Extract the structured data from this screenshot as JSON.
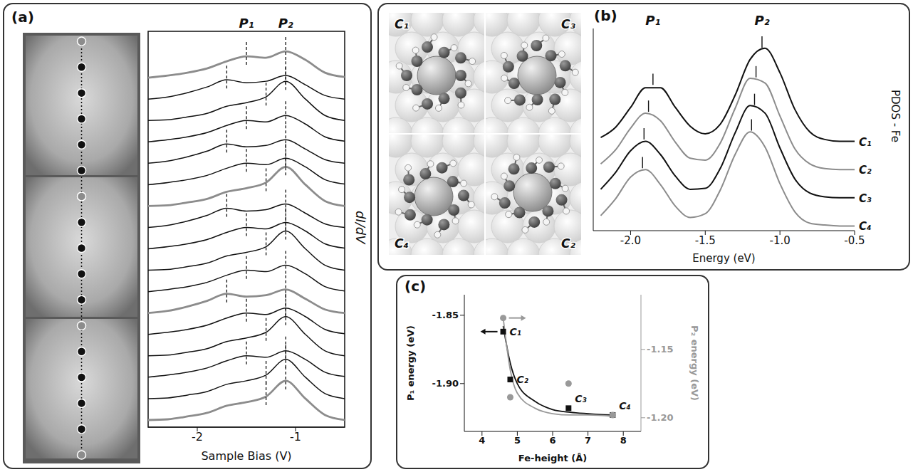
{
  "chart_data": [
    {
      "type": "line",
      "title": "(a)",
      "x_label": "Sample Bias (V)",
      "y_label": "dI/dV",
      "annotations": [
        "P₁",
        "P₂"
      ],
      "x": [
        -2.5,
        -2.3,
        -2.1,
        -1.9,
        -1.7,
        -1.5,
        -1.3,
        -1.1,
        -0.9,
        -0.7,
        -0.5
      ],
      "xlim": [
        -2.5,
        -0.5
      ],
      "xticks": [
        -2,
        -1
      ],
      "ylim": [
        -0.05,
        5.5
      ],
      "tick_labels": "x",
      "series": [
        {
          "color": "#8c8c8c",
          "line_style": "thick",
          "peaks": [
            -1.5,
            -1.1
          ],
          "values": [
            4.85,
            4.88,
            4.92,
            4.98,
            5.08,
            5.15,
            5.13,
            5.22,
            5.1,
            4.92,
            4.86
          ]
        },
        {
          "color": "#111111",
          "line_style": "solid",
          "peaks": [
            -1.7,
            -1.1
          ],
          "values": [
            4.55,
            4.58,
            4.64,
            4.72,
            4.82,
            4.78,
            4.8,
            4.88,
            4.75,
            4.6,
            4.55
          ]
        },
        {
          "color": "#111111",
          "line_style": "solid",
          "peaks": [
            -1.3,
            -1.1
          ],
          "values": [
            4.25,
            4.26,
            4.3,
            4.35,
            4.45,
            4.5,
            4.58,
            4.8,
            4.55,
            4.32,
            4.25
          ]
        },
        {
          "color": "#111111",
          "line_style": "solid",
          "peaks": [
            -1.5,
            -1.1
          ],
          "values": [
            3.95,
            3.98,
            4.02,
            4.08,
            4.18,
            4.25,
            4.23,
            4.32,
            4.2,
            4.02,
            3.96
          ]
        },
        {
          "color": "#111111",
          "line_style": "solid",
          "peaks": [
            -1.7,
            -1.1
          ],
          "values": [
            3.65,
            3.68,
            3.74,
            3.82,
            3.92,
            3.88,
            3.9,
            3.98,
            3.85,
            3.7,
            3.65
          ]
        },
        {
          "color": "#111111",
          "line_style": "solid",
          "peaks": [
            -1.5,
            -1.1
          ],
          "values": [
            3.35,
            3.38,
            3.42,
            3.48,
            3.58,
            3.65,
            3.63,
            3.72,
            3.6,
            3.42,
            3.36
          ]
        },
        {
          "color": "#8c8c8c",
          "line_style": "thick",
          "peaks": [
            -1.3,
            -1.1
          ],
          "values": [
            3.05,
            3.06,
            3.1,
            3.15,
            3.25,
            3.3,
            3.38,
            3.6,
            3.35,
            3.12,
            3.05
          ]
        },
        {
          "color": "#111111",
          "line_style": "solid",
          "peaks": [
            -1.7,
            -1.1
          ],
          "values": [
            2.75,
            2.78,
            2.84,
            2.92,
            3.02,
            2.98,
            3.0,
            3.08,
            2.95,
            2.8,
            2.75
          ]
        },
        {
          "color": "#111111",
          "line_style": "solid",
          "peaks": [
            -1.5,
            -1.1
          ],
          "values": [
            2.45,
            2.48,
            2.52,
            2.58,
            2.68,
            2.75,
            2.73,
            2.82,
            2.7,
            2.52,
            2.46
          ]
        },
        {
          "color": "#111111",
          "line_style": "solid",
          "peaks": [
            -1.3,
            -1.1
          ],
          "values": [
            2.15,
            2.16,
            2.2,
            2.25,
            2.35,
            2.4,
            2.48,
            2.7,
            2.45,
            2.22,
            2.15
          ]
        },
        {
          "color": "#111111",
          "line_style": "solid",
          "peaks": [
            -1.5,
            -1.1
          ],
          "values": [
            1.85,
            1.88,
            1.92,
            1.98,
            2.08,
            2.15,
            2.13,
            2.22,
            2.1,
            1.92,
            1.86
          ]
        },
        {
          "color": "#8c8c8c",
          "line_style": "thick",
          "peaks": [
            -1.7,
            -1.1
          ],
          "values": [
            1.55,
            1.58,
            1.64,
            1.72,
            1.82,
            1.78,
            1.8,
            1.88,
            1.75,
            1.6,
            1.55
          ]
        },
        {
          "color": "#111111",
          "line_style": "solid",
          "peaks": [
            -1.5,
            -1.1
          ],
          "values": [
            1.25,
            1.28,
            1.32,
            1.38,
            1.48,
            1.55,
            1.53,
            1.62,
            1.5,
            1.32,
            1.26
          ]
        },
        {
          "color": "#111111",
          "line_style": "solid",
          "peaks": [
            -1.3,
            -1.1
          ],
          "values": [
            0.95,
            0.96,
            1.0,
            1.05,
            1.15,
            1.2,
            1.28,
            1.5,
            1.25,
            1.02,
            0.95
          ]
        },
        {
          "color": "#111111",
          "line_style": "solid",
          "peaks": [
            -1.5,
            -1.1
          ],
          "values": [
            0.65,
            0.68,
            0.72,
            0.78,
            0.88,
            0.95,
            0.93,
            1.02,
            0.9,
            0.72,
            0.66
          ]
        },
        {
          "color": "#111111",
          "line_style": "solid",
          "peaks": [
            -1.3,
            -1.1
          ],
          "values": [
            0.35,
            0.36,
            0.4,
            0.45,
            0.55,
            0.6,
            0.68,
            0.9,
            0.65,
            0.42,
            0.35
          ]
        },
        {
          "color": "#8c8c8c",
          "line_style": "thick",
          "peaks": [
            -1.3,
            -1.1
          ],
          "values": [
            0.05,
            0.06,
            0.1,
            0.15,
            0.25,
            0.3,
            0.38,
            0.6,
            0.35,
            0.12,
            0.05
          ]
        }
      ]
    },
    {
      "type": "line",
      "title": "(b)",
      "x_label": "Energy (eV)",
      "y_label": "PDOS - Fe",
      "annotations": [
        "P₁",
        "P₂"
      ],
      "structure_labels": [
        "C₁",
        "C₃",
        "C₄",
        "C₂"
      ],
      "x": [
        -2.2,
        -2.1,
        -2.0,
        -1.9,
        -1.8,
        -1.7,
        -1.6,
        -1.5,
        -1.4,
        -1.3,
        -1.2,
        -1.1,
        -1.0,
        -0.9,
        -0.8,
        -0.7,
        -0.6,
        -0.5
      ],
      "xlim": [
        -2.25,
        -0.5
      ],
      "xticks": [
        {
          "value": -2,
          "label": "-2.0"
        },
        -1.5,
        {
          "value": -1,
          "label": "-1.0"
        },
        -0.5
      ],
      "ylim": [
        -0.05,
        2.1
      ],
      "tick_labels": "x",
      "series": [
        {
          "name": "C₁",
          "color": "#111111",
          "peaks": [
            -1.85,
            -1.12
          ],
          "values": [
            0.94,
            1.05,
            1.26,
            1.47,
            1.47,
            1.26,
            1.06,
            0.98,
            1.08,
            1.39,
            1.77,
            1.89,
            1.63,
            1.24,
            1.0,
            0.92,
            0.9,
            0.9
          ]
        },
        {
          "name": "C₂",
          "color": "#8c8c8c",
          "peaks": [
            -1.88,
            -1.16
          ],
          "values": [
            0.66,
            0.81,
            1.04,
            1.2,
            1.12,
            0.89,
            0.72,
            0.7,
            0.88,
            1.25,
            1.57,
            1.52,
            1.17,
            0.82,
            0.66,
            0.61,
            0.6,
            0.6
          ]
        },
        {
          "name": "C₃",
          "color": "#111111",
          "peaks": [
            -1.91,
            -1.17
          ],
          "values": [
            0.39,
            0.57,
            0.8,
            0.9,
            0.76,
            0.53,
            0.39,
            0.4,
            0.61,
            0.99,
            1.28,
            1.2,
            0.83,
            0.5,
            0.35,
            0.31,
            0.3,
            0.3
          ]
        },
        {
          "name": "C₄",
          "color": "#8c8c8c",
          "peaks": [
            -1.92,
            -1.19
          ],
          "values": [
            0.11,
            0.29,
            0.52,
            0.6,
            0.44,
            0.21,
            0.09,
            0.13,
            0.38,
            0.76,
            1.0,
            0.84,
            0.45,
            0.15,
            0.03,
            0.01,
            0,
            0
          ]
        }
      ]
    },
    {
      "type": "scatter",
      "title": "(c)",
      "x_label": "Fe-height (Å)",
      "y_label": "P₁ energy (eV)",
      "y2_label": "P₂ energy (eV)",
      "xlim": [
        3.5,
        8.5
      ],
      "xticks": [
        4,
        5,
        6,
        7,
        8
      ],
      "ylim": [
        -1.935,
        -1.835
      ],
      "yticks": [
        -1.85,
        {
          "value": -1.9,
          "label": "-1.90"
        }
      ],
      "y2lim": [
        -1.21,
        -1.11
      ],
      "y2ticks": [
        -1.15,
        {
          "value": -1.2,
          "label": "-1.20"
        }
      ],
      "series": [
        {
          "color": "#111111",
          "marker": "square",
          "x": [
            4.6,
            4.8,
            6.45,
            7.7
          ],
          "values": [
            -1.862,
            -1.897,
            -1.918,
            -1.923
          ],
          "point_labels": [
            "C₁",
            "C₂",
            "C₃",
            "C₄"
          ],
          "fit": {
            "x": [
              4.6,
              4.8,
              5.0,
              5.5,
              6.0,
              6.5,
              7.0,
              7.7
            ],
            "values": [
              -1.858,
              -1.885,
              -1.9,
              -1.913,
              -1.919,
              -1.921,
              -1.922,
              -1.923
            ]
          }
        },
        {
          "axis": "y2",
          "color": "#999999",
          "marker": "circle",
          "x": [
            4.6,
            4.8,
            6.45,
            7.7
          ],
          "values": [
            -1.127,
            -1.185,
            -1.175,
            -1.198
          ],
          "fit": {
            "x": [
              4.6,
              4.8,
              5.0,
              5.5,
              6.0,
              6.5,
              7.0,
              7.7
            ],
            "values": [
              -1.127,
              -1.165,
              -1.182,
              -1.193,
              -1.197,
              -1.198,
              -1.198,
              -1.199
            ]
          }
        }
      ]
    }
  ]
}
